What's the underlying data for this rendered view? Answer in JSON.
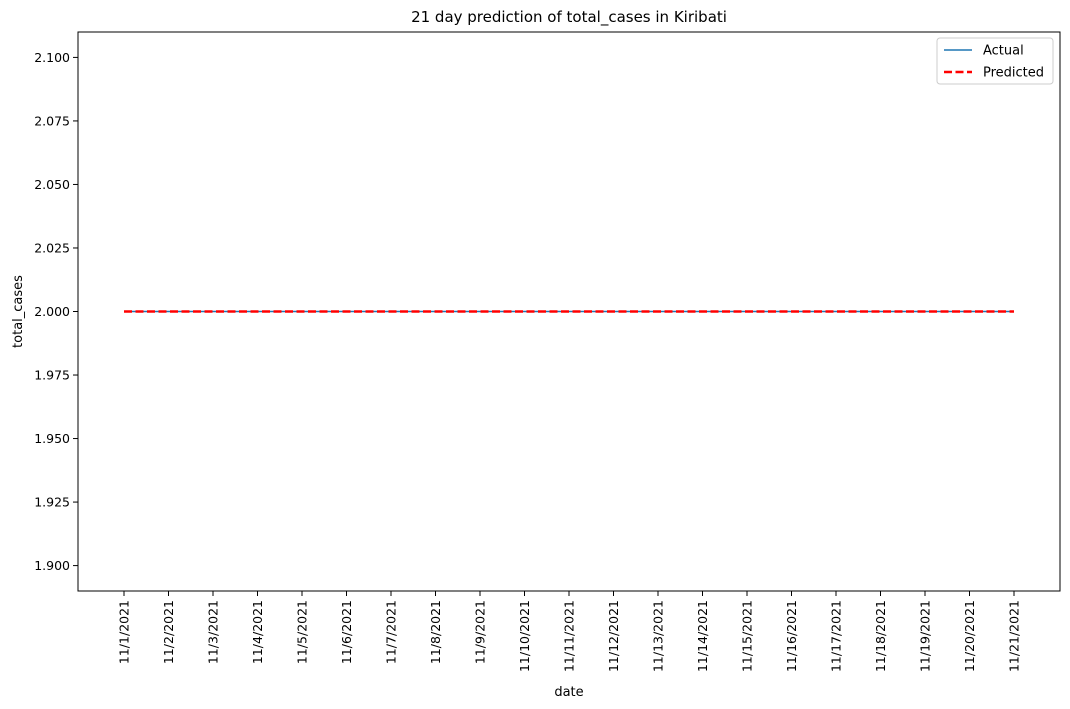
{
  "chart_data": {
    "type": "line",
    "title": "21 day prediction of total_cases in Kiribati",
    "xlabel": "date",
    "ylabel": "total_cases",
    "categories": [
      "11/1/2021",
      "11/2/2021",
      "11/3/2021",
      "11/4/2021",
      "11/5/2021",
      "11/6/2021",
      "11/7/2021",
      "11/8/2021",
      "11/9/2021",
      "11/10/2021",
      "11/11/2021",
      "11/12/2021",
      "11/13/2021",
      "11/14/2021",
      "11/15/2021",
      "11/16/2021",
      "11/17/2021",
      "11/18/2021",
      "11/19/2021",
      "11/20/2021",
      "11/21/2021"
    ],
    "series": [
      {
        "name": "Actual",
        "color": "#1f77b4",
        "style": "solid",
        "values": [
          2,
          2,
          2,
          2,
          2,
          2,
          2,
          2,
          2,
          2,
          2,
          2,
          2,
          2,
          2,
          2,
          2,
          2,
          2,
          2,
          2
        ]
      },
      {
        "name": "Predicted",
        "color": "#ff0000",
        "style": "dashed",
        "values": [
          2,
          2,
          2,
          2,
          2,
          2,
          2,
          2,
          2,
          2,
          2,
          2,
          2,
          2,
          2,
          2,
          2,
          2,
          2,
          2,
          2
        ]
      }
    ],
    "ylim": [
      1.89,
      2.11
    ],
    "yticks": [
      "1.900",
      "1.925",
      "1.950",
      "1.975",
      "2.000",
      "2.025",
      "2.050",
      "2.075",
      "2.100"
    ],
    "grid": false,
    "legend": "top-right"
  }
}
